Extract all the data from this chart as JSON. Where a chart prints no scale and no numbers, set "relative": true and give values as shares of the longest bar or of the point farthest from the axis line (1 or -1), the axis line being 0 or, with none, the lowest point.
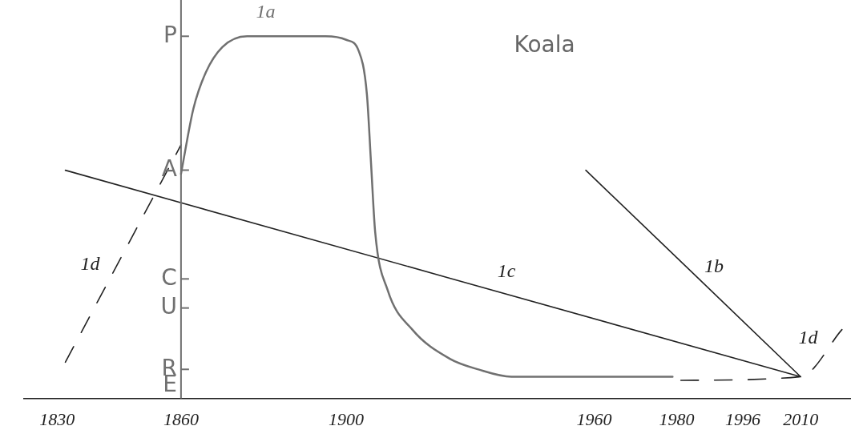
{
  "chart_data": {
    "type": "line",
    "title": "Koala",
    "relative": true,
    "xlim": [
      1822,
      2022
    ],
    "xticks": [
      1830,
      1860,
      1900,
      1960,
      1980,
      1996,
      2010
    ],
    "grid": false,
    "legend": false,
    "marker": "none",
    "ref_lines": [
      {
        "axis": "x",
        "value": 1860,
        "color": "#707070"
      }
    ],
    "series": [
      {
        "name": "1a",
        "color": "#707070",
        "line_style": "solid",
        "x": [
          1860,
          1863,
          1866,
          1870,
          1876,
          1885,
          1895,
          1900,
          1903,
          1905,
          1906,
          1907,
          1910,
          1916,
          1925,
          1932,
          1940,
          1960,
          1979
        ],
        "values": [
          0.62,
          0.8,
          0.9,
          0.97,
          1.0,
          1.0,
          1.0,
          0.99,
          0.96,
          0.84,
          0.65,
          0.46,
          0.3,
          0.19,
          0.11,
          0.08,
          0.06,
          0.06,
          0.06
        ]
      },
      {
        "name": "1b",
        "color": "#222222",
        "line_style": "solid",
        "x": [
          1958,
          2010
        ],
        "values": [
          0.63,
          0.06
        ]
      },
      {
        "name": "1c",
        "color": "#222222",
        "line_style": "solid",
        "x": [
          1832,
          2010
        ],
        "values": [
          0.63,
          0.06
        ]
      },
      {
        "name": "1d",
        "color": "#222222",
        "line_style": "dashed",
        "x": [
          1832,
          1860,
          1920,
          1981,
          2010,
          2020
        ],
        "values": [
          0.1,
          0.7,
          null,
          0.05,
          0.06,
          0.19
        ]
      }
    ],
    "annotations": [
      "P",
      "A",
      "C",
      "U",
      "R",
      "E"
    ]
  }
}
